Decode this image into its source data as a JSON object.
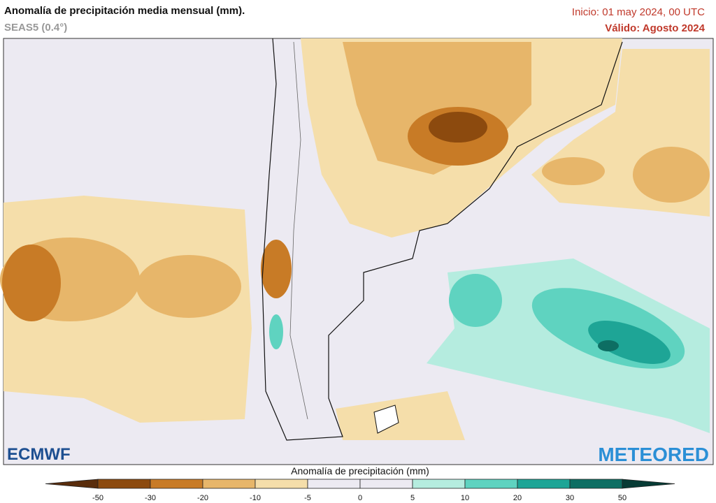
{
  "header": {
    "title": "Anomalía de precipitación media mensual (mm).",
    "subtitle": "SEAS5 (0.4°)",
    "init": "Inicio: 01 may 2024, 00 UTC",
    "valid": "Válido: Agosto 2024"
  },
  "logos": {
    "left": "ECMWF",
    "right": "METEORED"
  },
  "legend": {
    "title": "Anomalía de precipitación (mm)",
    "ticks": [
      -50,
      -30,
      -20,
      -10,
      -5,
      0,
      5,
      10,
      20,
      30,
      50
    ],
    "colors": [
      "#5a2d0c",
      "#8c4a0e",
      "#c87b26",
      "#e7b66a",
      "#f5deaa",
      "#eceaf2",
      "#eceaf2",
      "#b5ecdf",
      "#5fd3c0",
      "#1ea596",
      "#0d6e63",
      "#073b35"
    ]
  }
}
